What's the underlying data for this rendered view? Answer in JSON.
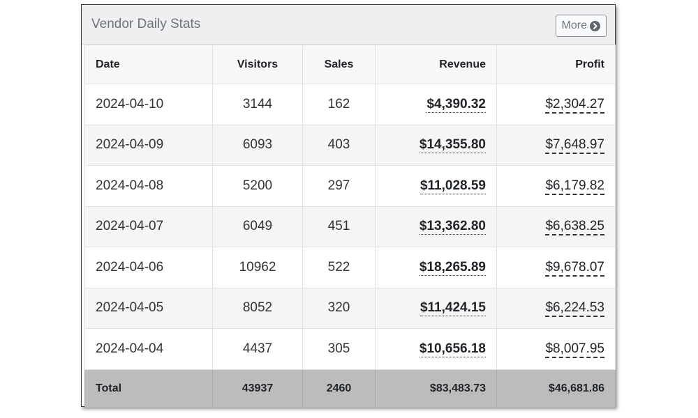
{
  "panel": {
    "title": "Vendor Daily Stats",
    "more_label": "More"
  },
  "table": {
    "headers": [
      "Date",
      "Visitors",
      "Sales",
      "Revenue",
      "Profit"
    ],
    "rows": [
      {
        "date": "2024-04-10",
        "visitors": "3144",
        "sales": "162",
        "revenue": "$4,390.32",
        "profit": "$2,304.27"
      },
      {
        "date": "2024-04-09",
        "visitors": "6093",
        "sales": "403",
        "revenue": "$14,355.80",
        "profit": "$7,648.97"
      },
      {
        "date": "2024-04-08",
        "visitors": "5200",
        "sales": "297",
        "revenue": "$11,028.59",
        "profit": "$6,179.82"
      },
      {
        "date": "2024-04-07",
        "visitors": "6049",
        "sales": "451",
        "revenue": "$13,362.80",
        "profit": "$6,638.25"
      },
      {
        "date": "2024-04-06",
        "visitors": "10962",
        "sales": "522",
        "revenue": "$18,265.89",
        "profit": "$9,678.07"
      },
      {
        "date": "2024-04-05",
        "visitors": "8052",
        "sales": "320",
        "revenue": "$11,424.15",
        "profit": "$6,224.53"
      },
      {
        "date": "2024-04-04",
        "visitors": "4437",
        "sales": "305",
        "revenue": "$10,656.18",
        "profit": "$8,007.95"
      }
    ],
    "totals": {
      "label": "Total",
      "visitors": "43937",
      "sales": "2460",
      "revenue": "$83,483.73",
      "profit": "$46,681.86"
    }
  },
  "icons": {
    "more": "chevron-circle-right-icon"
  },
  "colors": {
    "header_bg": "#efeff1",
    "total_row_bg": "#bcbcbc",
    "title_text": "#6c757d"
  }
}
